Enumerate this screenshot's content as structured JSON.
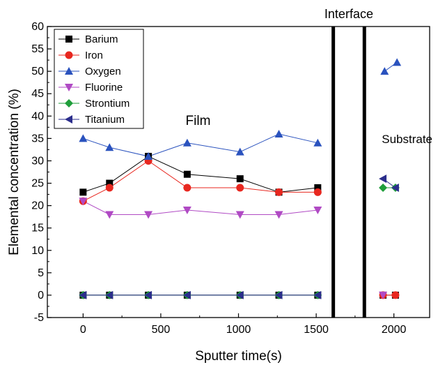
{
  "chart_data": {
    "type": "line",
    "xlabel": "Sputter time(s)",
    "ylabel": "Elemental concentration (%)",
    "xlim": [
      -230,
      2230
    ],
    "ylim": [
      -5,
      60
    ],
    "xticks": [
      0,
      500,
      1000,
      1500,
      2000
    ],
    "yticks": [
      -5,
      0,
      5,
      10,
      15,
      20,
      25,
      30,
      35,
      40,
      45,
      50,
      55,
      60
    ],
    "legend_position": "top-left",
    "annotations": [
      {
        "id": "film",
        "text": "Film",
        "x": 740,
        "y": 38
      },
      {
        "id": "substrate",
        "text": "Substrate",
        "x": 2085,
        "y": 34
      },
      {
        "id": "interface",
        "text": "Interface",
        "x": 1710,
        "y": 63
      }
    ],
    "interface_lines_x": [
      1610,
      1810
    ],
    "series": [
      {
        "name": "Barium",
        "color": "#000000",
        "marker": "square",
        "segments": [
          [
            [
              0,
              23
            ],
            [
              170,
              25
            ],
            [
              420,
              31
            ],
            [
              670,
              27
            ],
            [
              1010,
              26
            ],
            [
              1260,
              23
            ],
            [
              1510,
              24
            ]
          ],
          [
            [
              1930,
              0
            ],
            [
              2010,
              0
            ]
          ]
        ],
        "zero_series": [
          [
            0,
            0
          ],
          [
            170,
            0
          ],
          [
            420,
            0
          ],
          [
            670,
            0
          ],
          [
            1010,
            0
          ],
          [
            1260,
            0
          ],
          [
            1510,
            0
          ]
        ]
      },
      {
        "name": "Iron",
        "color": "#e8271f",
        "marker": "circle",
        "segments": [
          [
            [
              0,
              21
            ],
            [
              170,
              24
            ],
            [
              420,
              30
            ],
            [
              670,
              24
            ],
            [
              1010,
              24
            ],
            [
              1260,
              23
            ],
            [
              1510,
              23
            ]
          ],
          [
            [
              1930,
              0
            ],
            [
              2010,
              0
            ]
          ]
        ]
      },
      {
        "name": "Oxygen",
        "color": "#2a52be",
        "marker": "triangle-up",
        "segments": [
          [
            [
              0,
              35
            ],
            [
              170,
              33
            ],
            [
              420,
              31
            ],
            [
              670,
              34
            ],
            [
              1010,
              32
            ],
            [
              1260,
              36
            ],
            [
              1510,
              34
            ]
          ],
          [
            [
              1940,
              50
            ],
            [
              2020,
              52
            ]
          ]
        ]
      },
      {
        "name": "Fluorine",
        "color": "#b04ac4",
        "marker": "triangle-down",
        "segments": [
          [
            [
              0,
              21
            ],
            [
              170,
              18
            ],
            [
              420,
              18
            ],
            [
              670,
              19
            ],
            [
              1010,
              18
            ],
            [
              1260,
              18
            ],
            [
              1510,
              19
            ]
          ],
          [
            [
              1930,
              0
            ]
          ]
        ]
      },
      {
        "name": "Strontium",
        "color": "#1f9e3a",
        "marker": "diamond",
        "segments": [
          [
            [
              0,
              0
            ],
            [
              170,
              0
            ],
            [
              420,
              0
            ],
            [
              670,
              0
            ],
            [
              1010,
              0
            ],
            [
              1260,
              0
            ],
            [
              1510,
              0
            ]
          ],
          [
            [
              1930,
              24
            ],
            [
              2010,
              24
            ]
          ]
        ]
      },
      {
        "name": "Titanium",
        "color": "#2b2e8c",
        "marker": "triangle-left",
        "segments": [
          [
            [
              0,
              0
            ],
            [
              170,
              0
            ],
            [
              420,
              0
            ],
            [
              670,
              0
            ],
            [
              1010,
              0
            ],
            [
              1260,
              0
            ],
            [
              1510,
              0
            ]
          ],
          [
            [
              1930,
              26
            ],
            [
              2010,
              24
            ]
          ]
        ]
      }
    ]
  }
}
